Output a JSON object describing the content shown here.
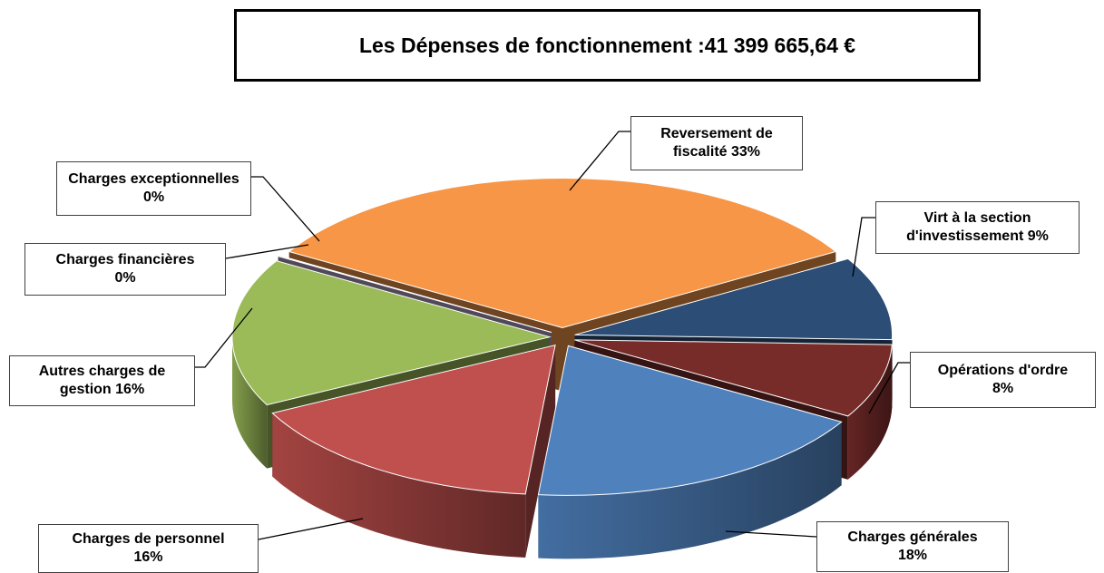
{
  "chart_data": {
    "type": "pie",
    "title": "Les Dépenses de fonctionnement :41 399 665,64 €",
    "categories": [
      "Reversement de fiscalité",
      "Virt à la section d'investissement",
      "Opérations d'ordre",
      "Charges générales",
      "Charges de personnel",
      "Autres charges de gestion",
      "Charges financières",
      "Charges exceptionnelles"
    ],
    "values": [
      33,
      9,
      8,
      18,
      16,
      16,
      0,
      0
    ],
    "value_labels": [
      "33%",
      "9%",
      "8%",
      "18%",
      "16%",
      "16%",
      "0%",
      "0%"
    ],
    "colors": [
      "#f79646",
      "#2c4d75",
      "#772c2a",
      "#4f81bd",
      "#c0504d",
      "#9bbb59",
      "#8064a2",
      "#b3a2c7"
    ]
  }
}
